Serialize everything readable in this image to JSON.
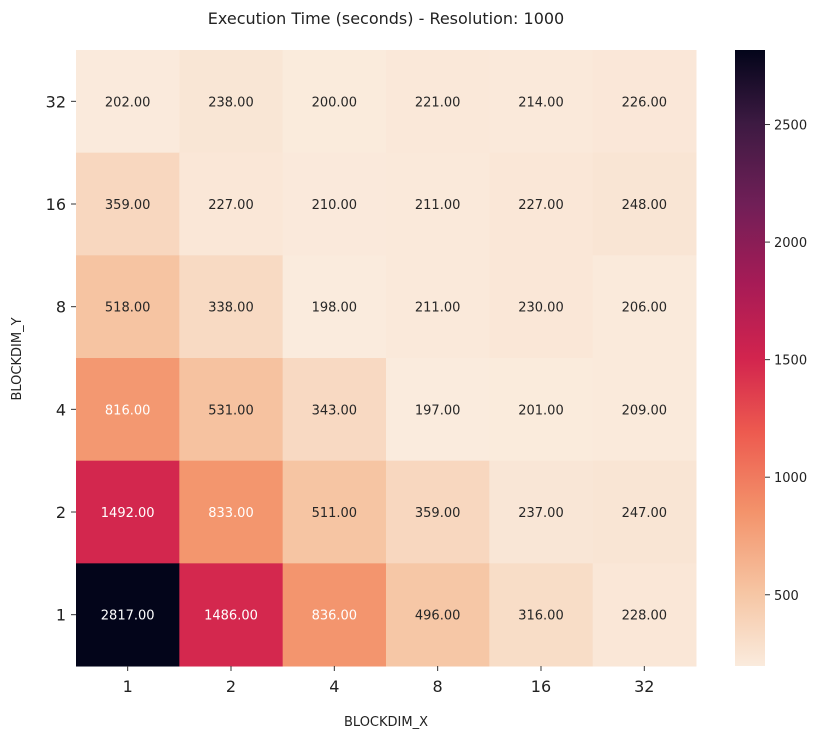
{
  "chart_data": {
    "type": "heatmap",
    "title": "Execution Time (seconds) - Resolution: 1000",
    "xlabel": "BLOCKDIM_X",
    "ylabel": "BLOCKDIM_Y",
    "x_categories": [
      "1",
      "2",
      "4",
      "8",
      "16",
      "32"
    ],
    "y_categories": [
      "32",
      "16",
      "8",
      "4",
      "2",
      "1"
    ],
    "values": [
      [
        202,
        238,
        200,
        221,
        214,
        226
      ],
      [
        359,
        227,
        210,
        211,
        227,
        248
      ],
      [
        518,
        338,
        198,
        211,
        230,
        206
      ],
      [
        816,
        531,
        343,
        197,
        201,
        209
      ],
      [
        1492,
        833,
        511,
        359,
        237,
        247
      ],
      [
        2817,
        1486,
        836,
        496,
        316,
        228
      ]
    ],
    "value_format": "2 decimals",
    "colormap": "rocket_r",
    "colorbar": {
      "min": 197,
      "max": 2817,
      "ticks": [
        500,
        1000,
        1500,
        2000,
        2500
      ]
    },
    "grid": false,
    "legend": "colorbar-right"
  }
}
